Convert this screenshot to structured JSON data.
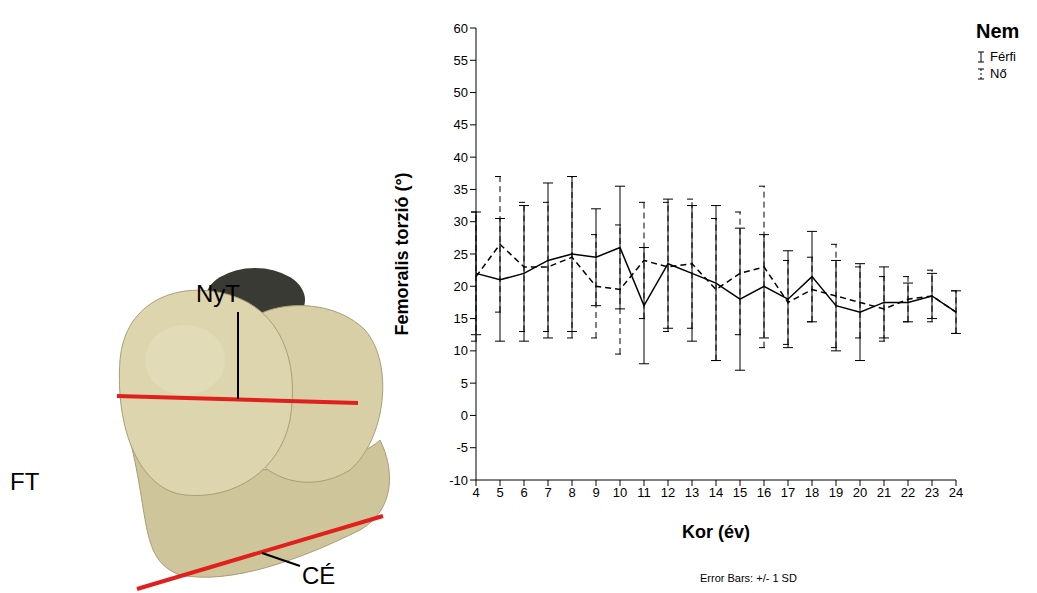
{
  "diagram": {
    "labels": [
      "NyT",
      "FT",
      "CÉ"
    ]
  },
  "chart_data": {
    "type": "line",
    "y_label": "Femoralis torzió (°)",
    "x_label": "Kor (év)",
    "legend_title": "Nem",
    "legend": "right",
    "annotations": [
      "Error Bars: +/- 1 SD"
    ],
    "grid": false,
    "categories": [
      "4",
      "5",
      "6",
      "7",
      "8",
      "9",
      "10",
      "11",
      "12",
      "13",
      "14",
      "15",
      "16",
      "17",
      "18",
      "19",
      "20",
      "21",
      "22",
      "23",
      "24"
    ],
    "ylim": [
      -10,
      60
    ],
    "yticks": [
      -10,
      -5,
      0,
      5,
      10,
      15,
      20,
      25,
      30,
      35,
      40,
      45,
      50,
      55,
      60
    ],
    "series": [
      {
        "name": "Férfi",
        "color": "#000000",
        "line_style": "solid",
        "marker": "none",
        "values": [
          22,
          21,
          22,
          24,
          25,
          24.5,
          26,
          17,
          23.5,
          22,
          20.5,
          18,
          20,
          18,
          21.5,
          17,
          16,
          17.5,
          17.5,
          18.5,
          16
        ],
        "error": [
          9.5,
          9.5,
          10.5,
          12,
          12,
          7.5,
          9.5,
          9,
          10,
          10.5,
          12,
          11,
          8,
          7.5,
          7,
          7,
          7.5,
          5.5,
          3,
          3.5,
          3.3
        ]
      },
      {
        "name": "Nő",
        "color": "#000000",
        "line_style": "dashed",
        "marker": "none",
        "values": [
          21.5,
          26.5,
          23,
          23,
          24.5,
          20,
          19.5,
          24,
          23,
          23.5,
          19.5,
          22,
          23,
          17.5,
          19.5,
          18.5,
          17.5,
          16.5,
          18,
          18.5,
          16
        ],
        "error": [
          10,
          10.5,
          10,
          10,
          12.5,
          8,
          10,
          9,
          10,
          10,
          11,
          9.5,
          12.5,
          6.5,
          5,
          8,
          5.5,
          5,
          3.5,
          4,
          3.3
        ]
      }
    ]
  }
}
